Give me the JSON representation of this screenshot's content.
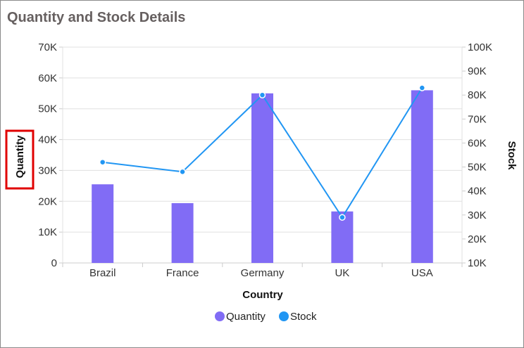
{
  "chart_data": {
    "type": "bar+line",
    "title": "Quantity and Stock Details",
    "categories": [
      "Brazil",
      "France",
      "Germany",
      "UK",
      "USA"
    ],
    "xlabel": "Country",
    "ylabel": "Quantity",
    "y2label": "Stock",
    "ylim": [
      0,
      70000
    ],
    "y_ticks": [
      "0",
      "10K",
      "20K",
      "30K",
      "40K",
      "50K",
      "60K",
      "70K"
    ],
    "y2lim": [
      10000,
      100000
    ],
    "y2_ticks": [
      "10K",
      "20K",
      "30K",
      "40K",
      "50K",
      "60K",
      "70K",
      "80K",
      "90K",
      "100K"
    ],
    "grid": true,
    "legend_position": "bottom",
    "series": [
      {
        "name": "Quantity",
        "type": "bar",
        "axis": "left",
        "color": "#816CF5",
        "values": [
          25500,
          19400,
          55000,
          16700,
          56000
        ]
      },
      {
        "name": "Stock",
        "type": "line",
        "axis": "right",
        "color": "#2196F3",
        "values": [
          52000,
          48000,
          80000,
          29000,
          83000
        ]
      }
    ],
    "highlight_color": "#E00000"
  }
}
